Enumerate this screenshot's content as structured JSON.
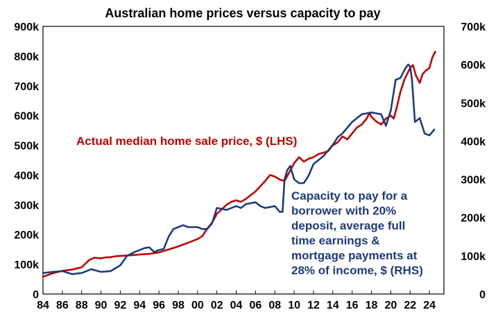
{
  "chart_data": {
    "type": "line",
    "title": "Australian home prices versus capacity to pay",
    "x_ticks": [
      "84",
      "86",
      "88",
      "90",
      "92",
      "94",
      "96",
      "98",
      "00",
      "02",
      "04",
      "06",
      "08",
      "10",
      "12",
      "14",
      "16",
      "18",
      "20",
      "22",
      "24"
    ],
    "x_range": [
      1984,
      2025.5
    ],
    "y_left": {
      "ticks": [
        "0",
        "100k",
        "200k",
        "300k",
        "400k",
        "500k",
        "600k",
        "700k",
        "800k",
        "900k"
      ],
      "range": [
        0,
        900000
      ]
    },
    "y_right": {
      "ticks": [
        "0",
        "100k",
        "200k",
        "300k",
        "400k",
        "500k",
        "600k",
        "700k"
      ],
      "range": [
        0,
        700000
      ]
    },
    "annotations": {
      "red": "Actual median home sale price, $ (LHS)",
      "blue": [
        "Capacity to pay for a",
        "borrower with 20%",
        "deposit, average full",
        "time earnings &",
        "mortgage payments at",
        "28% of income, $ (RHS)"
      ]
    },
    "grid": false,
    "colors": {
      "price": "#c00000",
      "capacity": "#1f3a7a"
    },
    "series": [
      {
        "axis": "left",
        "color": "#c00000",
        "x": [
          1984.0,
          1985.0,
          1986.0,
          1987.0,
          1988.0,
          1988.8,
          1989.3,
          1990.0,
          1990.5,
          1991.0,
          1991.5,
          1992.0,
          1993.0,
          1994.0,
          1995.0,
          1996.0,
          1997.0,
          1998.0,
          1999.0,
          2000.0,
          2000.5,
          2001.0,
          2001.5,
          2002.0,
          2002.5,
          2003.0,
          2003.5,
          2004.0,
          2004.5,
          2005.0,
          2006.0,
          2007.0,
          2007.5,
          2008.0,
          2008.5,
          2009.0,
          2009.5,
          2010.0,
          2010.5,
          2011.0,
          2011.5,
          2012.0,
          2012.5,
          2013.0,
          2013.5,
          2014.0,
          2014.5,
          2015.0,
          2015.5,
          2016.0,
          2016.5,
          2017.0,
          2017.5,
          2017.8,
          2018.0,
          2018.5,
          2019.0,
          2019.5,
          2020.0,
          2020.3,
          2020.6,
          2021.0,
          2021.4,
          2021.7,
          2022.0,
          2022.3,
          2022.6,
          2023.0,
          2023.3,
          2023.6,
          2024.0,
          2024.3,
          2024.6
        ],
        "values": [
          58000,
          70000,
          78000,
          82000,
          90000,
          115000,
          122000,
          120000,
          123000,
          124000,
          127000,
          128000,
          130000,
          133000,
          135000,
          140000,
          150000,
          160000,
          172000,
          185000,
          195000,
          220000,
          240000,
          270000,
          285000,
          300000,
          310000,
          315000,
          310000,
          320000,
          345000,
          380000,
          400000,
          395000,
          385000,
          380000,
          410000,
          440000,
          460000,
          445000,
          455000,
          460000,
          470000,
          475000,
          480000,
          500000,
          510000,
          530000,
          520000,
          540000,
          560000,
          570000,
          590000,
          610000,
          595000,
          580000,
          570000,
          590000,
          600000,
          590000,
          625000,
          680000,
          720000,
          740000,
          760000,
          770000,
          735000,
          710000,
          740000,
          750000,
          760000,
          795000,
          815000
        ]
      },
      {
        "axis": "right",
        "color": "#1f3a7a",
        "x": [
          1984.0,
          1985.0,
          1986.0,
          1987.0,
          1988.0,
          1989.0,
          1990.0,
          1991.0,
          1992.0,
          1992.7,
          1993.5,
          1994.5,
          1995.0,
          1995.5,
          1996.0,
          1996.5,
          1997.0,
          1997.5,
          1998.0,
          1998.5,
          1999.0,
          2000.0,
          2000.5,
          2001.0,
          2001.5,
          2002.0,
          2003.0,
          2004.0,
          2004.5,
          2005.0,
          2006.0,
          2006.5,
          2007.0,
          2008.0,
          2008.5,
          2008.8,
          2009.0,
          2009.3,
          2009.6,
          2010.0,
          2010.5,
          2011.0,
          2011.5,
          2012.0,
          2013.0,
          2014.0,
          2014.5,
          2015.0,
          2016.0,
          2017.0,
          2018.0,
          2019.0,
          2019.5,
          2020.0,
          2020.5,
          2021.0,
          2021.5,
          2021.8,
          2022.0,
          2022.2,
          2022.5,
          2023.0,
          2023.5,
          2024.0,
          2024.5
        ],
        "values": [
          55000,
          58000,
          60000,
          52000,
          55000,
          65000,
          58000,
          60000,
          75000,
          100000,
          110000,
          120000,
          122000,
          110000,
          115000,
          118000,
          150000,
          170000,
          175000,
          180000,
          175000,
          175000,
          170000,
          170000,
          185000,
          225000,
          220000,
          230000,
          225000,
          235000,
          240000,
          230000,
          225000,
          230000,
          215000,
          215000,
          300000,
          325000,
          335000,
          300000,
          290000,
          290000,
          310000,
          340000,
          360000,
          390000,
          410000,
          420000,
          450000,
          470000,
          475000,
          470000,
          440000,
          480000,
          560000,
          565000,
          590000,
          600000,
          595000,
          560000,
          450000,
          460000,
          420000,
          415000,
          430000
        ]
      }
    ]
  }
}
